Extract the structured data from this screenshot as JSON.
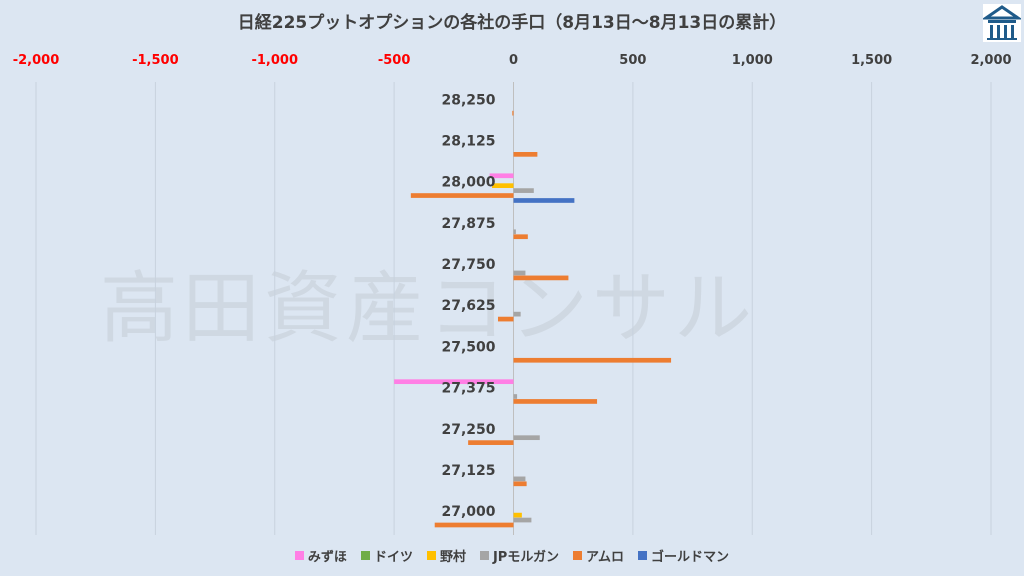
{
  "chart_data": {
    "type": "bar",
    "orientation": "horizontal",
    "title": "日経225プットオプションの各社の手口（8月13日～8月13日の累計）",
    "watermark": "高田資産コンサル",
    "xlim": [
      -2000,
      2000
    ],
    "x_ticks": [
      "-2,000",
      "-1,500",
      "-1,000",
      "-500",
      "0",
      "500",
      "1,000",
      "1,500",
      "2,000"
    ],
    "x_tick_values": [
      -2000,
      -1500,
      -1000,
      -500,
      0,
      500,
      1000,
      1500,
      2000
    ],
    "negative_tick_color": "#ff0000",
    "positive_tick_color": "#404040",
    "categories": [
      "28,250",
      "28,125",
      "28,000",
      "27,875",
      "27,750",
      "27,625",
      "27,500",
      "27,375",
      "27,250",
      "27,125",
      "27,000"
    ],
    "series": [
      {
        "name": "みずほ",
        "color": "#ff7fe5",
        "values": [
          0,
          0,
          -100,
          0,
          0,
          0,
          0,
          -500,
          0,
          0,
          0
        ]
      },
      {
        "name": "ドイツ",
        "color": "#70ad47",
        "values": [
          0,
          0,
          0,
          0,
          0,
          0,
          0,
          0,
          0,
          0,
          0
        ]
      },
      {
        "name": "野村",
        "color": "#ffc000",
        "values": [
          0,
          0,
          -90,
          0,
          0,
          0,
          0,
          0,
          0,
          0,
          35
        ]
      },
      {
        "name": "JPモルガン",
        "color": "#a5a5a5",
        "values": [
          0,
          0,
          85,
          10,
          50,
          30,
          0,
          15,
          110,
          50,
          75
        ]
      },
      {
        "name": "アムロ",
        "color": "#ed7d31",
        "values": [
          -5,
          100,
          -430,
          60,
          230,
          -65,
          660,
          350,
          -190,
          55,
          -330
        ]
      },
      {
        "name": "ゴールドマン",
        "color": "#4472c4",
        "values": [
          0,
          0,
          255,
          0,
          0,
          0,
          0,
          0,
          0,
          0,
          0
        ]
      }
    ],
    "legend_position": "bottom",
    "grid": true
  }
}
